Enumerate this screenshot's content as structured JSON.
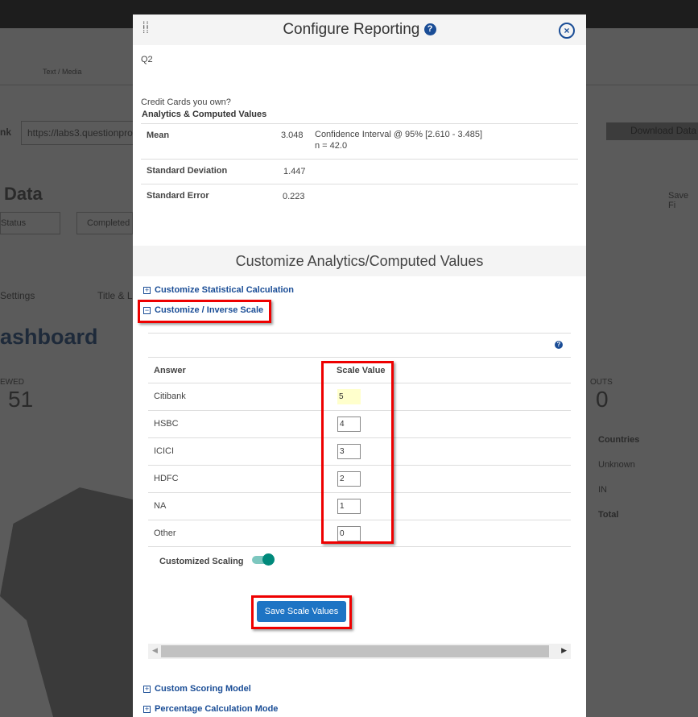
{
  "background": {
    "text_media": "Text / Media",
    "link_label": "nk",
    "link_value": "https://labs3.questionpro",
    "download": "Download Data",
    "data_title": "Data",
    "save": "Save Fi",
    "status": "Status",
    "completed": "Completed",
    "settings": "Settings",
    "title_l": "Title & L",
    "dashboard": "ashboard",
    "viewed": "EWED",
    "viewed_count": "51",
    "outs": "OUTS",
    "outs_count": "0",
    "countries": [
      "Countries",
      "Unknown",
      "IN",
      "Total"
    ]
  },
  "modal": {
    "title": "Configure Reporting",
    "question_id": "Q2",
    "question_text": "Credit Cards you own?",
    "analytics_heading": "Analytics & Computed Values",
    "stats": [
      {
        "label": "Mean",
        "value": "3.048",
        "note": "Confidence Interval @ 95% [2.610 - 3.485]",
        "note2": "n = 42.0"
      },
      {
        "label": "Standard Deviation",
        "value": "1.447"
      },
      {
        "label": "Standard Error",
        "value": "0.223"
      }
    ],
    "section_title": "Customize Analytics/Computed Values",
    "accordions": [
      "Customize Statistical Calculation",
      "Customize / Inverse Scale",
      "Custom Scoring Model",
      "Percentage Calculation Mode"
    ],
    "table": {
      "col_answer": "Answer",
      "col_scale": "Scale Value",
      "rows": [
        {
          "answer": "Citibank",
          "value": "5"
        },
        {
          "answer": "HSBC",
          "value": "4"
        },
        {
          "answer": "ICICI",
          "value": "3"
        },
        {
          "answer": "HDFC",
          "value": "2"
        },
        {
          "answer": "NA",
          "value": "1"
        },
        {
          "answer": "Other",
          "value": "0"
        }
      ]
    },
    "customized_scaling": "Customized Scaling",
    "customized_scaling_on": true,
    "save_button": "Save Scale Values"
  }
}
